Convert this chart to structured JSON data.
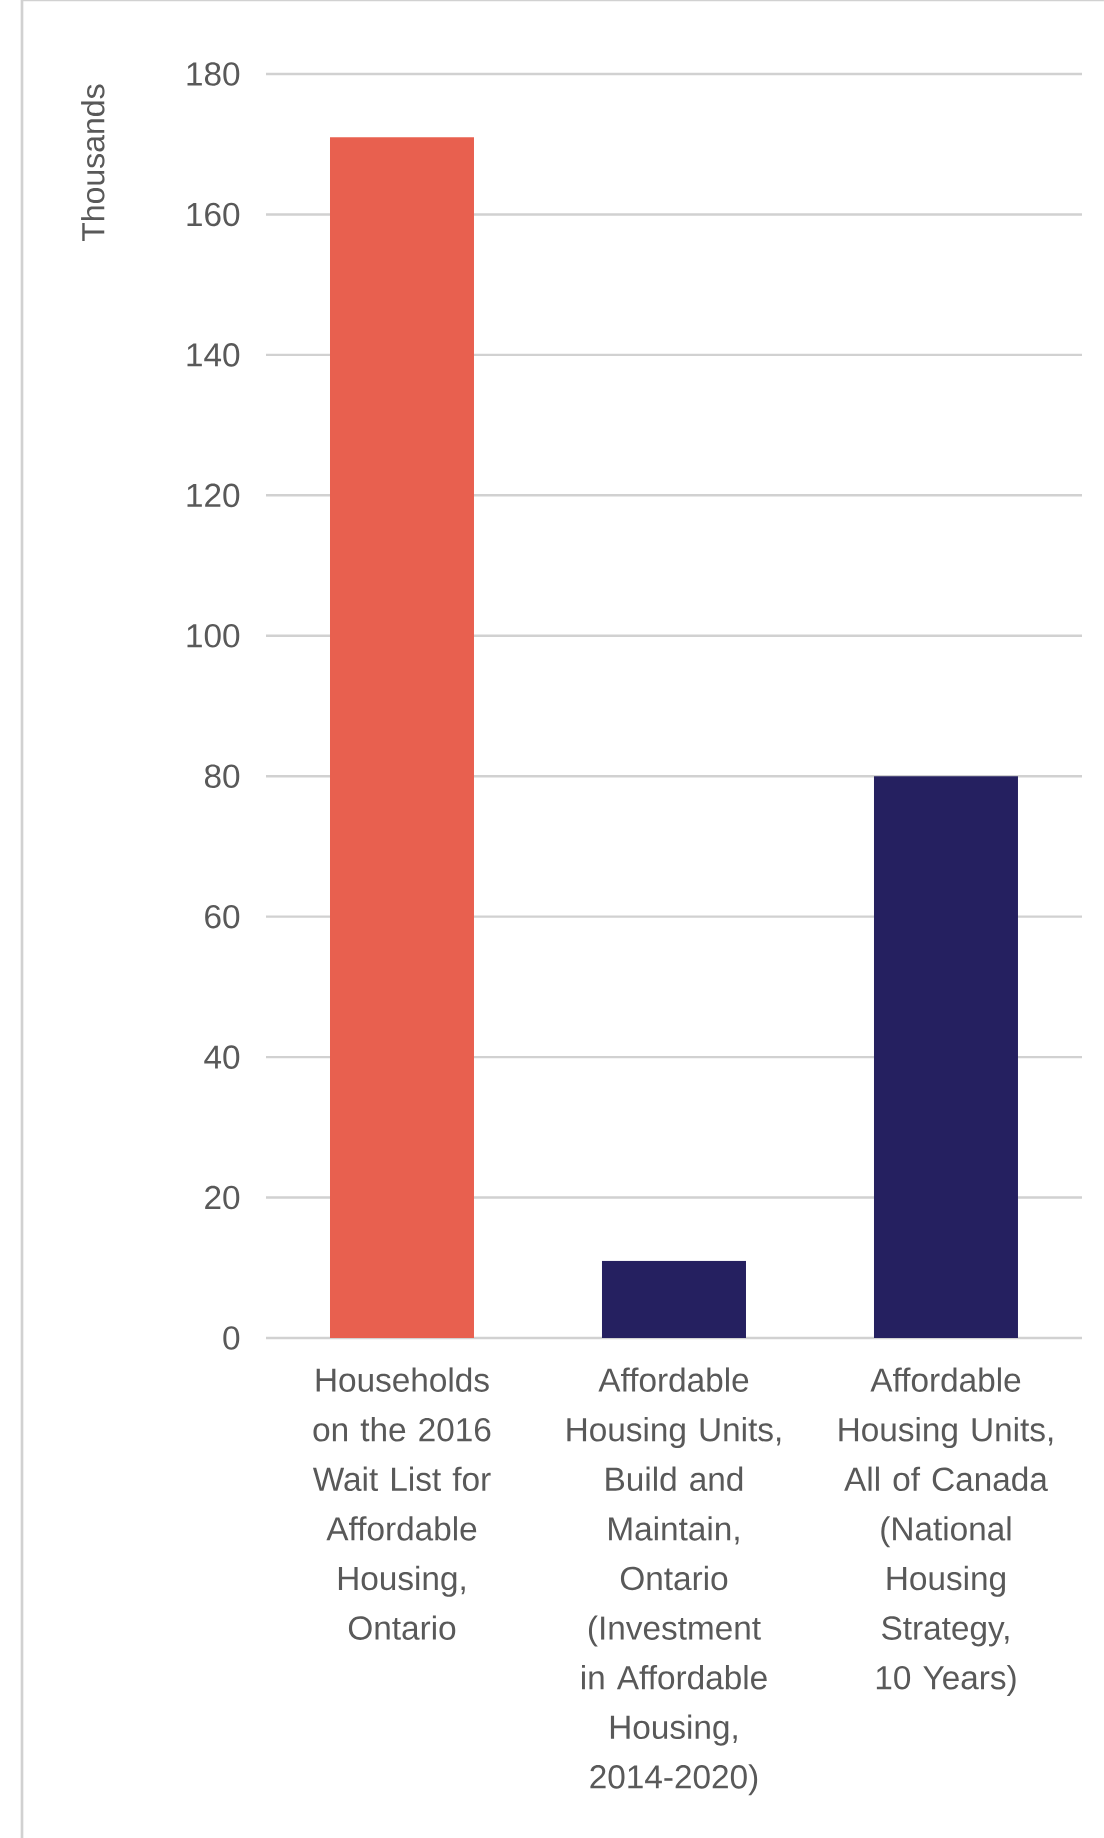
{
  "chart_data": {
    "type": "bar",
    "ylabel": "Thousands",
    "categories": [
      "Households on the 2016 Wait List for Affordable Housing, Ontario",
      "Affordable Housing Units, Build and Maintain, Ontario (Investment in Affordable Housing, 2014-2020)",
      "Affordable Housing Units, All of Canada (National Housing Strategy, 10 Years)"
    ],
    "values": [
      171,
      11,
      80
    ],
    "colors": [
      "#e8604f",
      "#252060",
      "#252060"
    ],
    "ylim": [
      0,
      180
    ],
    "yticks": [
      0,
      20,
      40,
      60,
      80,
      100,
      120,
      140,
      160,
      180
    ],
    "grid": "y"
  }
}
